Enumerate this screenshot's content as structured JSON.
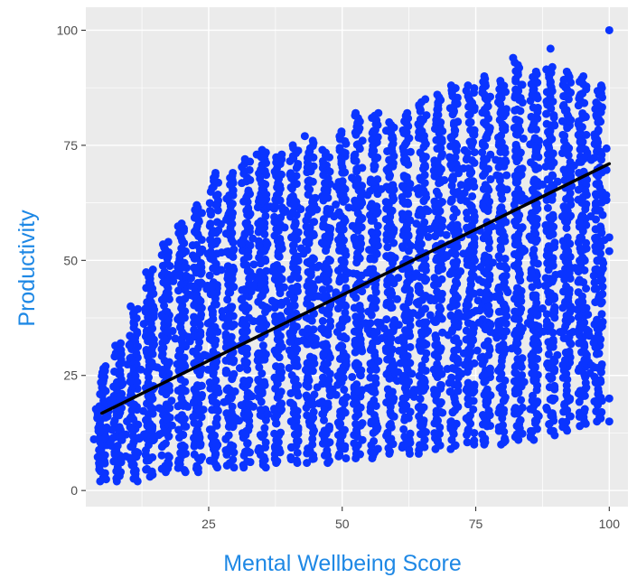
{
  "chart_data": {
    "type": "scatter",
    "title": "",
    "xlabel": "Mental Wellbeing Score",
    "ylabel": "Productivity",
    "xlim": [
      2,
      103.5
    ],
    "ylim": [
      -3.5,
      105
    ],
    "x_ticks": [
      25,
      50,
      75,
      100
    ],
    "y_ticks": [
      0,
      25,
      50,
      75,
      100
    ],
    "grid": true,
    "legend": "none",
    "point_color": "#0a34ff",
    "line_color": "#000000",
    "panel_background": "#ebebeb",
    "trend_line": {
      "x": [
        5,
        100
      ],
      "y": [
        16.8,
        71
      ]
    },
    "columns": [
      {
        "x": 5,
        "y_range": [
          2,
          27
        ]
      },
      {
        "x": 8,
        "y_range": [
          2,
          32
        ]
      },
      {
        "x": 11,
        "y_range": [
          2,
          40
        ]
      },
      {
        "x": 14,
        "y_range": [
          3,
          48
        ]
      },
      {
        "x": 17,
        "y_range": [
          4,
          54
        ]
      },
      {
        "x": 20,
        "y_range": [
          4,
          58
        ]
      },
      {
        "x": 23,
        "y_range": [
          4,
          62
        ]
      },
      {
        "x": 26,
        "y_range": [
          5,
          69
        ]
      },
      {
        "x": 29,
        "y_range": [
          5,
          69
        ]
      },
      {
        "x": 32,
        "y_range": [
          5,
          72
        ]
      },
      {
        "x": 35,
        "y_range": [
          5,
          74
        ]
      },
      {
        "x": 38,
        "y_range": [
          6,
          73
        ]
      },
      {
        "x": 41,
        "y_range": [
          6,
          75
        ]
      },
      {
        "x": 44,
        "y_range": [
          6,
          76
        ]
      },
      {
        "x": 47,
        "y_range": [
          6,
          74
        ]
      },
      {
        "x": 50,
        "y_range": [
          7,
          78
        ]
      },
      {
        "x": 53,
        "y_range": [
          7,
          82
        ]
      },
      {
        "x": 56,
        "y_range": [
          7,
          82
        ]
      },
      {
        "x": 59,
        "y_range": [
          8,
          80
        ]
      },
      {
        "x": 62,
        "y_range": [
          8,
          82
        ]
      },
      {
        "x": 65,
        "y_range": [
          8,
          85
        ]
      },
      {
        "x": 68,
        "y_range": [
          9,
          86
        ]
      },
      {
        "x": 71,
        "y_range": [
          9,
          88
        ]
      },
      {
        "x": 74,
        "y_range": [
          10,
          88
        ]
      },
      {
        "x": 77,
        "y_range": [
          10,
          90
        ]
      },
      {
        "x": 80,
        "y_range": [
          10,
          89
        ]
      },
      {
        "x": 83,
        "y_range": [
          11,
          93
        ]
      },
      {
        "x": 86,
        "y_range": [
          11,
          91
        ]
      },
      {
        "x": 89,
        "y_range": [
          12,
          92
        ]
      },
      {
        "x": 92,
        "y_range": [
          13,
          91
        ]
      },
      {
        "x": 95,
        "y_range": [
          14,
          90
        ]
      },
      {
        "x": 98,
        "y_range": [
          15,
          88
        ]
      }
    ],
    "outliers": [
      {
        "x": 100,
        "y": 100
      },
      {
        "x": 89,
        "y": 96
      },
      {
        "x": 82,
        "y": 94
      },
      {
        "x": 100,
        "y": 15
      },
      {
        "x": 100,
        "y": 20
      },
      {
        "x": 100,
        "y": 52
      },
      {
        "x": 100,
        "y": 55
      },
      {
        "x": 95,
        "y": 41
      },
      {
        "x": 92,
        "y": 38
      },
      {
        "x": 43,
        "y": 77
      },
      {
        "x": 34,
        "y": 73
      }
    ]
  }
}
